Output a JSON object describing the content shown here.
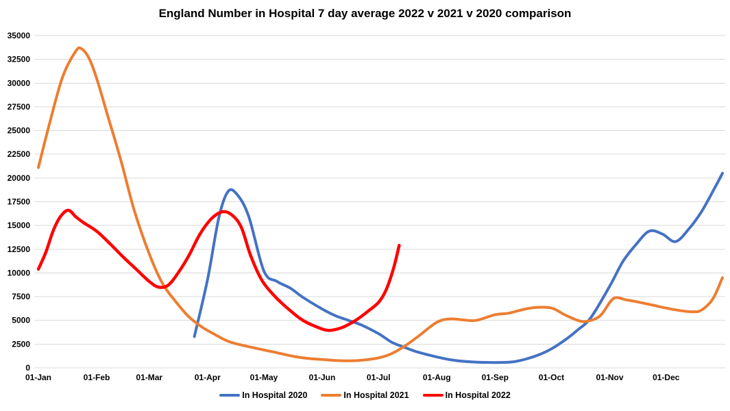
{
  "title": "England Number in Hospital 7 day average 2022 v 2021 v 2020 comparison",
  "chart_data": {
    "type": "line",
    "title": "England Number in Hospital 7 day average 2022 v 2021 v 2020 comparison",
    "xlabel": "",
    "ylabel": "",
    "grid": true,
    "legend_position": "bottom",
    "y_axis": {
      "min": 0,
      "max": 35000,
      "step": 2500,
      "tick_labels": [
        "0",
        "2500",
        "5000",
        "7500",
        "10000",
        "12500",
        "15000",
        "17500",
        "20000",
        "22500",
        "25000",
        "27500",
        "30000",
        "32500",
        "35000"
      ]
    },
    "x_axis": {
      "tick_labels": [
        "01-Jan",
        "01-Feb",
        "01-Mar",
        "01-Apr",
        "01-May",
        "01-Jun",
        "01-Jul",
        "01-Aug",
        "01-Sep",
        "01-Oct",
        "01-Nov",
        "01-Dec"
      ],
      "unit": "date (day of year)"
    },
    "series": [
      {
        "name": "In Hospital 2020",
        "color": "#4472C4",
        "stroke_width": 4,
        "points": [
          [
            "03-25",
            3300
          ],
          [
            "04-01",
            9300
          ],
          [
            "04-07",
            15800
          ],
          [
            "04-12",
            18600
          ],
          [
            "04-17",
            18200
          ],
          [
            "04-23",
            15900
          ],
          [
            "05-01",
            10200
          ],
          [
            "05-08",
            9100
          ],
          [
            "05-15",
            8400
          ],
          [
            "05-22",
            7400
          ],
          [
            "06-01",
            6200
          ],
          [
            "06-08",
            5500
          ],
          [
            "06-15",
            5000
          ],
          [
            "06-22",
            4500
          ],
          [
            "07-01",
            3600
          ],
          [
            "07-08",
            2700
          ],
          [
            "07-15",
            2150
          ],
          [
            "07-22",
            1650
          ],
          [
            "08-01",
            1150
          ],
          [
            "08-10",
            800
          ],
          [
            "08-20",
            620
          ],
          [
            "09-01",
            560
          ],
          [
            "09-10",
            620
          ],
          [
            "09-17",
            900
          ],
          [
            "09-24",
            1350
          ],
          [
            "10-01",
            2000
          ],
          [
            "10-08",
            2900
          ],
          [
            "10-15",
            4000
          ],
          [
            "10-22",
            5300
          ],
          [
            "11-01",
            8600
          ],
          [
            "11-08",
            11200
          ],
          [
            "11-15",
            13000
          ],
          [
            "11-22",
            14400
          ],
          [
            "11-29",
            14100
          ],
          [
            "12-06",
            13300
          ],
          [
            "12-13",
            14600
          ],
          [
            "12-20",
            16500
          ],
          [
            "12-27",
            19000
          ],
          [
            "12-31",
            20500
          ]
        ]
      },
      {
        "name": "In Hospital 2021",
        "color": "#ED7D31",
        "stroke_width": 4,
        "points": [
          [
            "01-01",
            21100
          ],
          [
            "01-07",
            25800
          ],
          [
            "01-14",
            30700
          ],
          [
            "01-21",
            33400
          ],
          [
            "01-24",
            33600
          ],
          [
            "01-28",
            32600
          ],
          [
            "02-01",
            30500
          ],
          [
            "02-07",
            26500
          ],
          [
            "02-14",
            21800
          ],
          [
            "02-21",
            16600
          ],
          [
            "03-01",
            12000
          ],
          [
            "03-08",
            8900
          ],
          [
            "03-15",
            7000
          ],
          [
            "03-22",
            5400
          ],
          [
            "03-29",
            4300
          ],
          [
            "04-05",
            3500
          ],
          [
            "04-12",
            2800
          ],
          [
            "04-19",
            2400
          ],
          [
            "04-26",
            2100
          ],
          [
            "05-03",
            1800
          ],
          [
            "05-10",
            1500
          ],
          [
            "05-17",
            1200
          ],
          [
            "05-24",
            1000
          ],
          [
            "06-01",
            880
          ],
          [
            "06-08",
            780
          ],
          [
            "06-15",
            740
          ],
          [
            "06-22",
            800
          ],
          [
            "07-01",
            1050
          ],
          [
            "07-08",
            1500
          ],
          [
            "07-15",
            2300
          ],
          [
            "07-22",
            3300
          ],
          [
            "08-01",
            4800
          ],
          [
            "08-08",
            5150
          ],
          [
            "08-15",
            5050
          ],
          [
            "08-22",
            5000
          ],
          [
            "09-01",
            5600
          ],
          [
            "09-08",
            5750
          ],
          [
            "09-15",
            6100
          ],
          [
            "09-22",
            6350
          ],
          [
            "10-01",
            6300
          ],
          [
            "10-08",
            5600
          ],
          [
            "10-15",
            5000
          ],
          [
            "10-20",
            4900
          ],
          [
            "10-27",
            5500
          ],
          [
            "11-03",
            7300
          ],
          [
            "11-10",
            7150
          ],
          [
            "11-17",
            6900
          ],
          [
            "11-24",
            6600
          ],
          [
            "12-01",
            6300
          ],
          [
            "12-08",
            6050
          ],
          [
            "12-15",
            5900
          ],
          [
            "12-20",
            6100
          ],
          [
            "12-26",
            7300
          ],
          [
            "12-31",
            9500
          ]
        ]
      },
      {
        "name": "In Hospital 2022",
        "color": "#FF0000",
        "stroke_width": 4.5,
        "points": [
          [
            "01-01",
            10400
          ],
          [
            "01-05",
            12200
          ],
          [
            "01-09",
            14500
          ],
          [
            "01-13",
            16000
          ],
          [
            "01-17",
            16600
          ],
          [
            "01-21",
            15900
          ],
          [
            "01-25",
            15300
          ],
          [
            "02-01",
            14400
          ],
          [
            "02-08",
            13100
          ],
          [
            "02-15",
            11700
          ],
          [
            "02-22",
            10400
          ],
          [
            "03-01",
            9100
          ],
          [
            "03-06",
            8500
          ],
          [
            "03-11",
            8700
          ],
          [
            "03-16",
            9900
          ],
          [
            "03-22",
            11800
          ],
          [
            "03-28",
            14100
          ],
          [
            "04-03",
            15700
          ],
          [
            "04-09",
            16450
          ],
          [
            "04-14",
            16100
          ],
          [
            "04-19",
            14800
          ],
          [
            "04-24",
            11800
          ],
          [
            "04-30",
            9200
          ],
          [
            "05-07",
            7500
          ],
          [
            "05-14",
            6200
          ],
          [
            "05-21",
            5100
          ],
          [
            "05-28",
            4400
          ],
          [
            "06-04",
            3950
          ],
          [
            "06-11",
            4200
          ],
          [
            "06-18",
            4900
          ],
          [
            "06-25",
            5900
          ],
          [
            "07-01",
            6900
          ],
          [
            "07-05",
            8200
          ],
          [
            "07-09",
            10500
          ],
          [
            "07-12",
            12900
          ]
        ]
      }
    ]
  },
  "legend": {
    "items": [
      "In Hospital 2020",
      "In Hospital 2021",
      "In Hospital 2022"
    ]
  }
}
